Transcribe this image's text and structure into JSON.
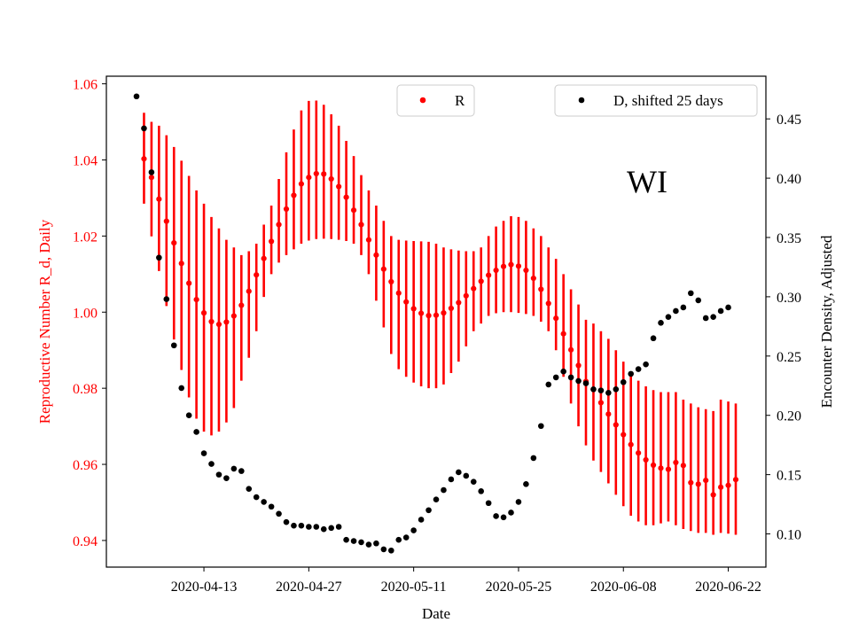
{
  "chart_data": {
    "type": "scatter",
    "title": "",
    "annotation": "WI",
    "xlabel": "Date",
    "ylabel_left": "Reproductive Number R_d, Daily",
    "ylabel_right": "Encounter Density, Adjusted",
    "x_ticks": [
      "2020-04-13",
      "2020-04-27",
      "2020-05-11",
      "2020-05-25",
      "2020-06-08",
      "2020-06-22"
    ],
    "y_left_ticks": [
      "0.94",
      "0.96",
      "0.98",
      "1.00",
      "1.02",
      "1.04",
      "1.06"
    ],
    "y_right_ticks": [
      "0.10",
      "0.15",
      "0.20",
      "0.25",
      "0.30",
      "0.35",
      "0.40",
      "0.45"
    ],
    "y_left_range": [
      0.933,
      1.062
    ],
    "y_right_range": [
      0.072,
      0.486
    ],
    "x_start_date": "2020-04-04",
    "colors": {
      "R": "#ff0000",
      "D": "#000000",
      "left_axis": "#ff0000"
    },
    "legend": {
      "R": {
        "label": "R",
        "placement": "top-center"
      },
      "D": {
        "label": "D, shifted 25 days",
        "placement": "top-right"
      }
    },
    "series_R": {
      "name": "R",
      "start_day": 1,
      "values": [
        1.0403,
        1.0354,
        1.0297,
        1.0239,
        1.0182,
        1.0128,
        1.0076,
        1.0033,
        0.9998,
        0.9975,
        0.9968,
        0.9974,
        0.999,
        1.0018,
        1.0055,
        1.0098,
        1.0141,
        1.0186,
        1.023,
        1.0271,
        1.0307,
        1.0337,
        1.0354,
        1.0364,
        1.0363,
        1.035,
        1.033,
        1.0302,
        1.0268,
        1.023,
        1.019,
        1.015,
        1.0113,
        1.008,
        1.005,
        1.0027,
        1.0009,
        0.9997,
        0.9991,
        0.9992,
        0.9998,
        1.001,
        1.0025,
        1.0043,
        1.0062,
        1.0081,
        1.0097,
        1.011,
        1.012,
        1.0125,
        1.0121,
        1.011,
        1.0089,
        1.006,
        1.0023,
        0.9984,
        0.9943,
        0.9901,
        0.986,
        0.9818,
        0.9797,
        0.9762,
        0.9732,
        0.9704,
        0.9678,
        0.9652,
        0.963,
        0.9612,
        0.9598,
        0.959,
        0.9587,
        0.9605,
        0.9597,
        0.9552,
        0.9548,
        0.9558,
        0.952,
        0.954,
        0.9545,
        0.956
      ],
      "err_upper": [
        1.0524,
        1.05,
        1.049,
        1.0465,
        1.0434,
        1.0398,
        1.0358,
        1.032,
        1.0285,
        1.025,
        1.022,
        1.019,
        1.017,
        1.015,
        1.016,
        1.018,
        1.023,
        1.028,
        1.035,
        1.042,
        1.048,
        1.053,
        1.0555,
        1.0556,
        1.0545,
        1.052,
        1.049,
        1.045,
        1.041,
        1.036,
        1.032,
        1.028,
        1.024,
        1.02,
        1.019,
        1.0188,
        1.0187,
        1.0186,
        1.0185,
        1.018,
        1.017,
        1.0165,
        1.0162,
        1.016,
        1.016,
        1.017,
        1.02,
        1.0225,
        1.024,
        1.0252,
        1.025,
        1.024,
        1.022,
        1.02,
        1.017,
        1.014,
        1.01,
        1.006,
        1.002,
        0.998,
        0.997,
        0.995,
        0.993,
        0.99,
        0.987,
        0.984,
        0.982,
        0.9805,
        0.9795,
        0.979,
        0.979,
        0.979,
        0.977,
        0.976,
        0.975,
        0.9745,
        0.974,
        0.977,
        0.9765,
        0.976
      ],
      "err_lower": [
        1.0285,
        1.0199,
        1.0108,
        1.0016,
        0.9928,
        0.9848,
        0.9776,
        0.972,
        0.9686,
        0.9676,
        0.9686,
        0.971,
        0.9748,
        0.982,
        0.988,
        0.995,
        1.004,
        1.01,
        1.013,
        1.015,
        1.0165,
        1.018,
        1.0188,
        1.0192,
        1.0193,
        1.0192,
        1.019,
        1.0187,
        1.018,
        1.015,
        1.01,
        1.003,
        0.996,
        0.989,
        0.985,
        0.983,
        0.9815,
        0.9805,
        0.98,
        0.98,
        0.981,
        0.984,
        0.987,
        0.991,
        0.995,
        0.997,
        0.999,
        0.9997,
        1.0,
        1.0,
        0.9998,
        0.9995,
        0.999,
        0.9975,
        0.995,
        0.99,
        0.983,
        0.976,
        0.97,
        0.965,
        0.961,
        0.958,
        0.955,
        0.952,
        0.949,
        0.9465,
        0.945,
        0.944,
        0.944,
        0.9445,
        0.945,
        0.944,
        0.943,
        0.9425,
        0.942,
        0.942,
        0.9415,
        0.942,
        0.9418,
        0.9415
      ]
    },
    "series_D": {
      "name": "D, shifted 25 days",
      "start_day": 0,
      "values": [
        0.469,
        0.442,
        0.405,
        0.333,
        0.298,
        0.259,
        0.223,
        0.2,
        0.186,
        0.168,
        0.159,
        0.15,
        0.147,
        0.155,
        0.153,
        0.138,
        0.131,
        0.127,
        0.123,
        0.117,
        0.11,
        0.107,
        0.107,
        0.106,
        0.106,
        0.104,
        0.105,
        0.106,
        0.095,
        0.094,
        0.093,
        0.091,
        0.092,
        0.087,
        0.086,
        0.095,
        0.097,
        0.103,
        0.112,
        0.12,
        0.129,
        0.137,
        0.146,
        0.152,
        0.149,
        0.144,
        0.136,
        0.126,
        0.115,
        0.114,
        0.118,
        0.127,
        0.142,
        0.164,
        0.191,
        0.226,
        0.232,
        0.237,
        0.232,
        0.229,
        0.227,
        0.222,
        0.221,
        0.219,
        0.222,
        0.228,
        0.235,
        0.239,
        0.243,
        0.265,
        0.278,
        0.283,
        0.288,
        0.291,
        0.303,
        0.297,
        0.282,
        0.283,
        0.288,
        0.291
      ]
    }
  }
}
